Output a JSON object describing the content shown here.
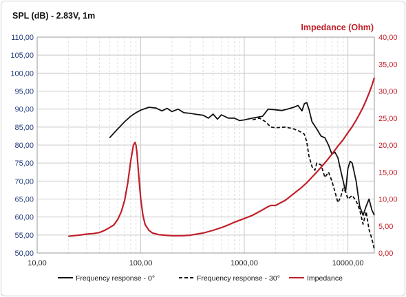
{
  "chart_data": {
    "type": "line",
    "title": "SPL (dB) - 2.83V, 1m",
    "title_right": "Impedance (Ohm)",
    "x_scale": "log",
    "xlim": [
      10,
      18000
    ],
    "ylim_left": [
      50,
      110
    ],
    "ylim_right": [
      0,
      40
    ],
    "x_ticks": [
      "10,00",
      "100,00",
      "1000,00",
      "10000,00"
    ],
    "y_left_ticks": [
      "50,00",
      "55,00",
      "60,00",
      "65,00",
      "70,00",
      "75,00",
      "80,00",
      "85,00",
      "90,00",
      "95,00",
      "100,00",
      "105,00",
      "110,00"
    ],
    "y_right_ticks": [
      "0,00",
      "5,00",
      "10,00",
      "15,00",
      "20,00",
      "25,00",
      "30,00",
      "35,00",
      "40,00"
    ],
    "grid": true,
    "legend_position": "bottom",
    "colors": {
      "spl_axis": "#1f3a7a",
      "impedance_axis": "#c0202a",
      "grid": "#c8c8c8",
      "grid_minor": "#dedede"
    },
    "series": [
      {
        "name": "Frequency response - 0°",
        "axis": "left",
        "color": "#111111",
        "dash": "solid",
        "x": [
          50,
          60,
          70,
          80,
          90,
          100,
          120,
          140,
          160,
          180,
          200,
          230,
          260,
          300,
          350,
          400,
          450,
          500,
          550,
          600,
          700,
          800,
          900,
          1000,
          1200,
          1500,
          1700,
          2000,
          2300,
          2600,
          3000,
          3300,
          3600,
          3800,
          4000,
          4200,
          4500,
          5000,
          5500,
          6000,
          6500,
          7000,
          7500,
          8000,
          8500,
          9000,
          9500,
          10000,
          10500,
          11000,
          12000,
          13000,
          14000,
          15000,
          16000,
          17000,
          18000
        ],
        "y": [
          82,
          84.5,
          86.5,
          88,
          89,
          89.7,
          90.5,
          90.3,
          89.5,
          90.2,
          89.3,
          90,
          89,
          88.8,
          88.5,
          88.3,
          87.5,
          88.6,
          87.2,
          88.4,
          87.5,
          87.5,
          86.8,
          87,
          87.5,
          88,
          90,
          89.8,
          89.6,
          90,
          90.5,
          91,
          89.5,
          91.5,
          91.8,
          90,
          86.5,
          84.5,
          82.5,
          82,
          80,
          77.5,
          78,
          76.5,
          73,
          70,
          67,
          73.5,
          75.5,
          75,
          70,
          63,
          60.5,
          63,
          65,
          62,
          60.5
        ]
      },
      {
        "name": "Frequency response - 30°",
        "axis": "left",
        "color": "#111111",
        "dash": "dashed",
        "x": [
          1200,
          1400,
          1600,
          1800,
          2000,
          2500,
          3000,
          3300,
          3600,
          3800,
          4000,
          4200,
          4500,
          4800,
          5000,
          5500,
          6000,
          6500,
          7000,
          7500,
          8000,
          8500,
          9000,
          9500,
          10000,
          11000,
          12000,
          13000,
          14000,
          15000,
          16000,
          17000,
          18000
        ],
        "y": [
          87,
          87.5,
          86.5,
          85,
          84.8,
          85,
          84.5,
          84,
          83.5,
          83,
          81,
          77,
          74,
          73,
          75,
          74.5,
          71,
          72.5,
          70,
          67,
          64,
          65.5,
          68,
          67,
          65,
          66,
          64.5,
          62,
          58,
          61.5,
          56.5,
          54,
          51
        ]
      },
      {
        "name": "Impedance",
        "axis": "right",
        "color": "#c0202a",
        "dash": "solid",
        "x": [
          20,
          25,
          30,
          35,
          40,
          45,
          50,
          55,
          60,
          65,
          70,
          75,
          80,
          85,
          88,
          90,
          92,
          95,
          100,
          105,
          110,
          120,
          130,
          150,
          170,
          200,
          250,
          300,
          400,
          500,
          600,
          700,
          800,
          1000,
          1200,
          1500,
          1700,
          1800,
          2000,
          2500,
          3000,
          3500,
          4000,
          5000,
          6000,
          7000,
          8000,
          9000,
          10000,
          11000,
          12000,
          13000,
          14000,
          15000,
          16000,
          17000,
          18000
        ],
        "y": [
          3.1,
          3.3,
          3.5,
          3.6,
          3.8,
          4.2,
          4.7,
          5.2,
          6.2,
          7.7,
          9.8,
          13,
          17,
          20,
          20.5,
          20,
          18.5,
          15,
          10,
          7,
          5.3,
          4.2,
          3.7,
          3.4,
          3.3,
          3.2,
          3.2,
          3.3,
          3.7,
          4.2,
          4.7,
          5.2,
          5.7,
          6.4,
          7,
          8,
          8.6,
          8.8,
          8.8,
          9.8,
          11,
          12,
          13,
          15,
          16.7,
          18.3,
          19.8,
          21,
          22.3,
          23.4,
          24.6,
          25.8,
          27,
          28.3,
          29.6,
          31,
          32.5
        ]
      }
    ]
  }
}
